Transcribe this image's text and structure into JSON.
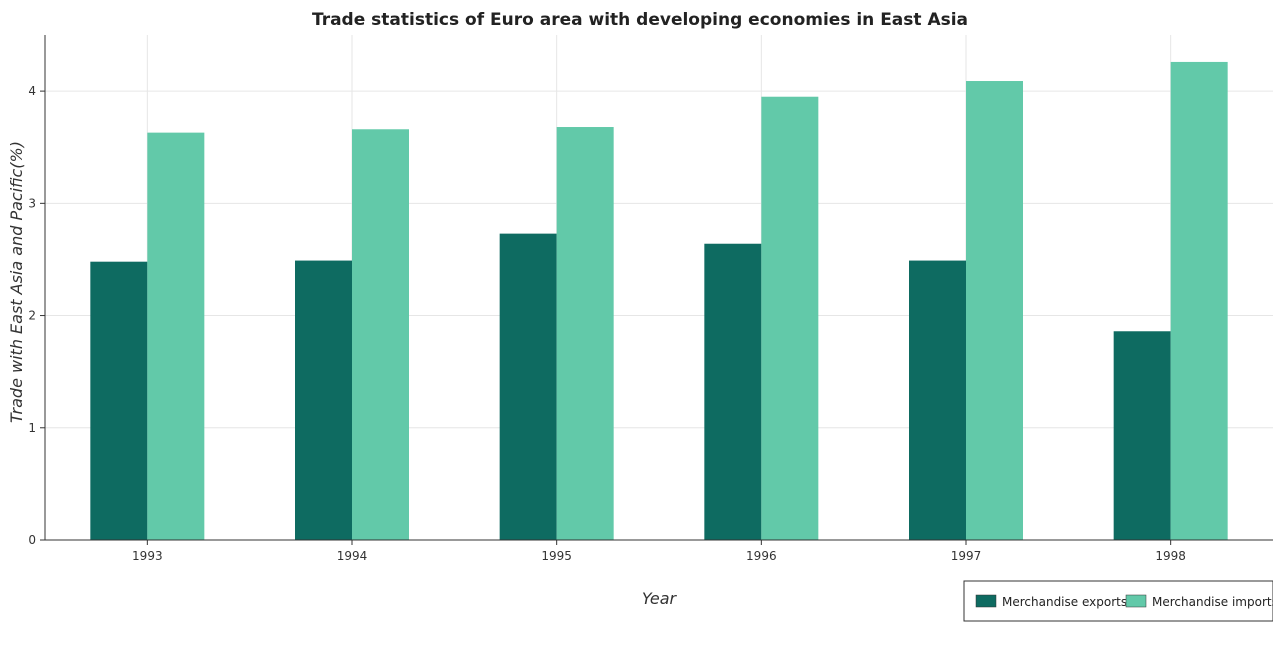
{
  "chart_data": {
    "type": "bar",
    "title": "Trade statistics of Euro area with developing economies in East Asia",
    "xlabel": "Year",
    "ylabel": "Trade with East Asia and Pacific(%)",
    "categories": [
      "1993",
      "1994",
      "1995",
      "1996",
      "1997",
      "1998"
    ],
    "series": [
      {
        "name": "Merchandise exports",
        "color": "#0e6b61",
        "values": [
          2.48,
          2.49,
          2.73,
          2.64,
          2.49,
          1.86
        ]
      },
      {
        "name": "Merchandise imports",
        "color": "#62c9a9",
        "values": [
          3.63,
          3.66,
          3.68,
          3.95,
          4.09,
          4.26
        ]
      }
    ],
    "ylim": [
      0,
      4.5
    ],
    "yticks": [
      "0",
      "1",
      "2",
      "3",
      "4"
    ],
    "grid": true,
    "legend_position": "bottom-right"
  }
}
